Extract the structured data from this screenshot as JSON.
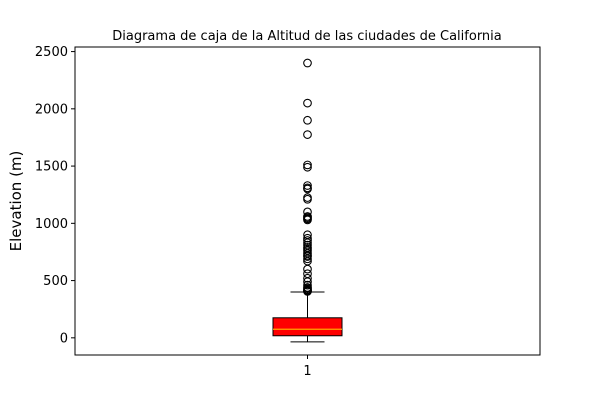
{
  "chart_data": {
    "type": "box",
    "title": "Diagrama de caja de la Altitud de las ciudades de California",
    "xlabel": "",
    "ylabel": "Elevation (m)",
    "categories": [
      "1"
    ],
    "ylim": [
      -150,
      2540
    ],
    "yticks": [
      0,
      500,
      1000,
      1500,
      2000,
      2500
    ],
    "grid": false,
    "box": {
      "q1": 18,
      "median": 75,
      "q3": 175,
      "whisker_low": -35,
      "whisker_high": 400,
      "fill_color": "#ff0000",
      "median_color": "#ffa500"
    },
    "outliers": [
      2400,
      2050,
      1900,
      1775,
      1510,
      1490,
      1330,
      1310,
      1300,
      1225,
      1210,
      1100,
      1060,
      1050,
      1040,
      1030,
      900,
      870,
      850,
      830,
      810,
      790,
      775,
      760,
      740,
      720,
      710,
      690,
      670,
      600,
      560,
      520,
      490,
      460,
      440,
      430,
      420,
      415,
      410,
      405
    ]
  }
}
